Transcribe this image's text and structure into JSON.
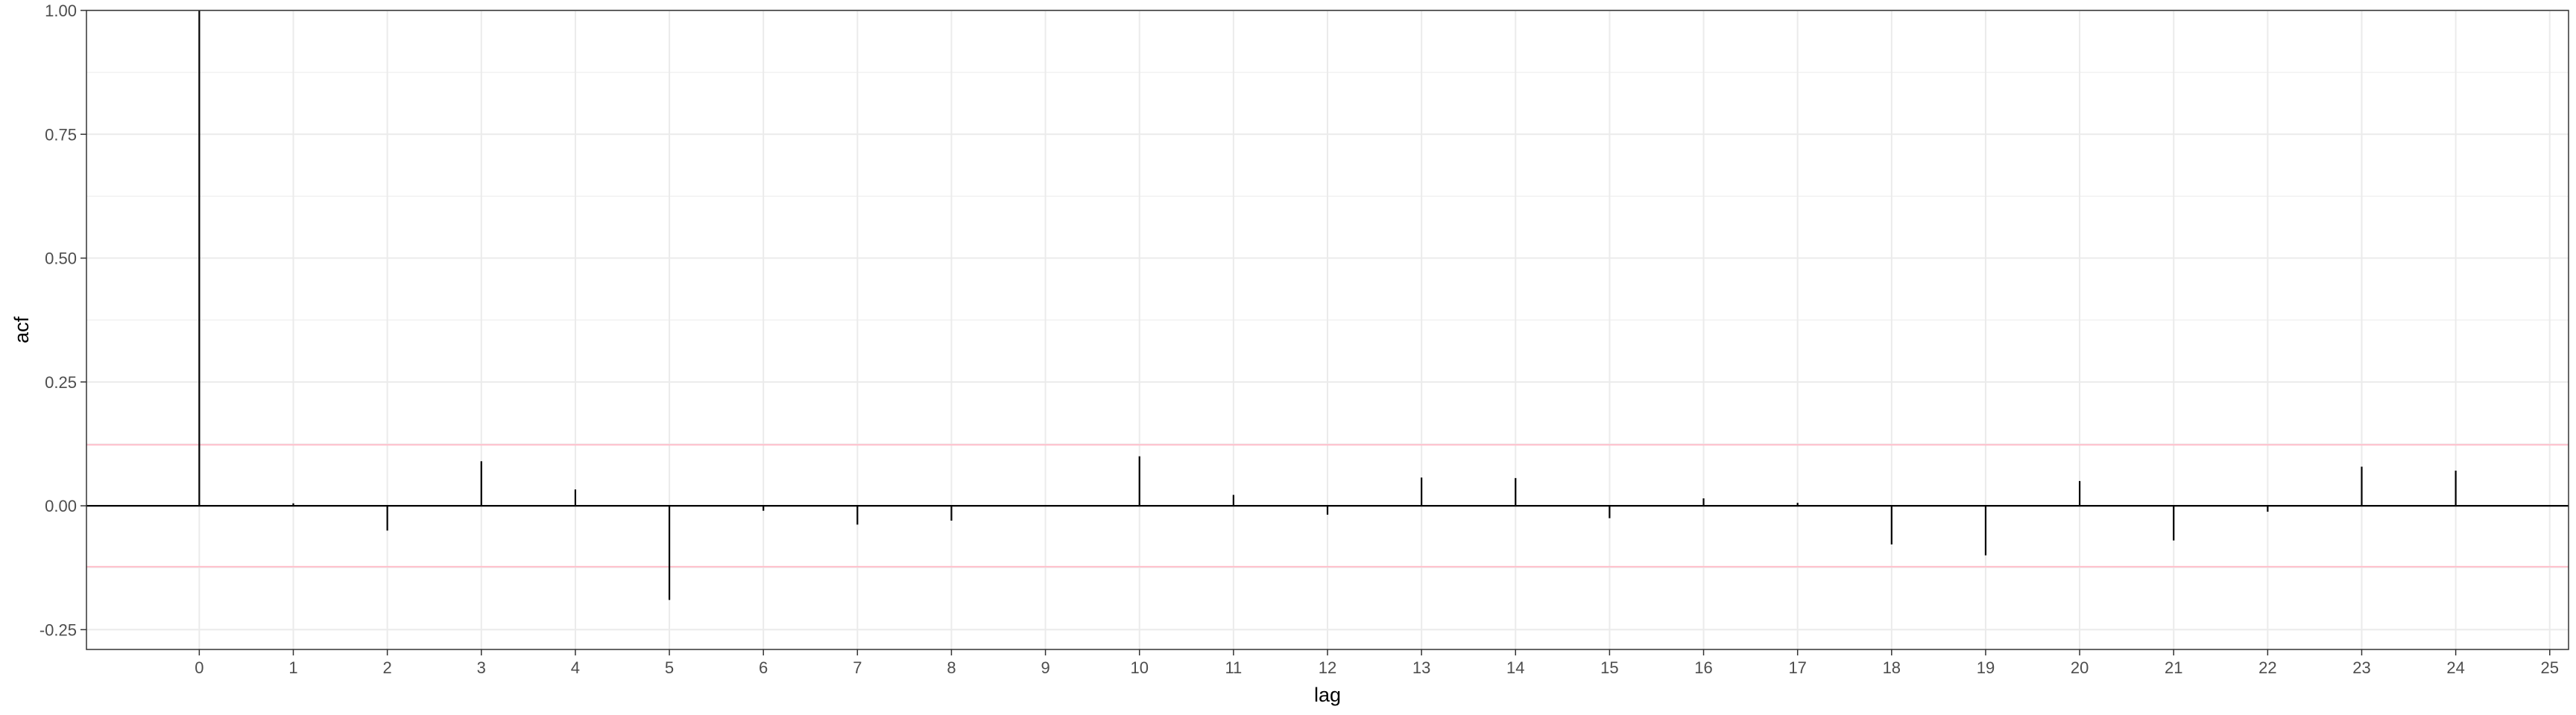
{
  "chart_data": {
    "type": "bar",
    "xlabel": "lag",
    "ylabel": "acf",
    "xlim": [
      -1.2,
      25.2
    ],
    "ylim": [
      -0.29,
      1.0
    ],
    "x_ticks": [
      0,
      1,
      2,
      3,
      4,
      5,
      6,
      7,
      8,
      9,
      10,
      11,
      12,
      13,
      14,
      15,
      16,
      17,
      18,
      19,
      20,
      21,
      22,
      23,
      24,
      25
    ],
    "y_ticks": [
      {
        "value": 1.0,
        "label": "1.00"
      },
      {
        "value": 0.75,
        "label": "0.75"
      },
      {
        "value": 0.5,
        "label": "0.50"
      },
      {
        "value": 0.25,
        "label": "0.25"
      },
      {
        "value": 0.0,
        "label": "0.00"
      },
      {
        "value": -0.25,
        "label": "-0.25"
      }
    ],
    "lags": [
      0,
      1,
      2,
      3,
      4,
      5,
      6,
      7,
      8,
      9,
      10,
      11,
      12,
      13,
      14,
      15,
      16,
      17,
      18,
      19,
      20,
      21,
      22,
      23,
      24
    ],
    "values": [
      1.0,
      0.005,
      -0.05,
      0.09,
      0.033,
      -0.19,
      -0.01,
      -0.038,
      -0.03,
      0.0,
      0.1,
      0.022,
      -0.018,
      0.057,
      0.056,
      -0.025,
      0.015,
      0.006,
      -0.078,
      -0.1,
      0.05,
      -0.07,
      -0.012,
      0.079,
      0.071
    ],
    "confidence_bounds": [
      0.123,
      -0.123
    ],
    "grid": true,
    "colors": {
      "bars": "#000000",
      "bounds": "#ffc0cb",
      "grid": "#ebebeb",
      "panel_border": "#333333",
      "zero_line": "#000000"
    }
  }
}
